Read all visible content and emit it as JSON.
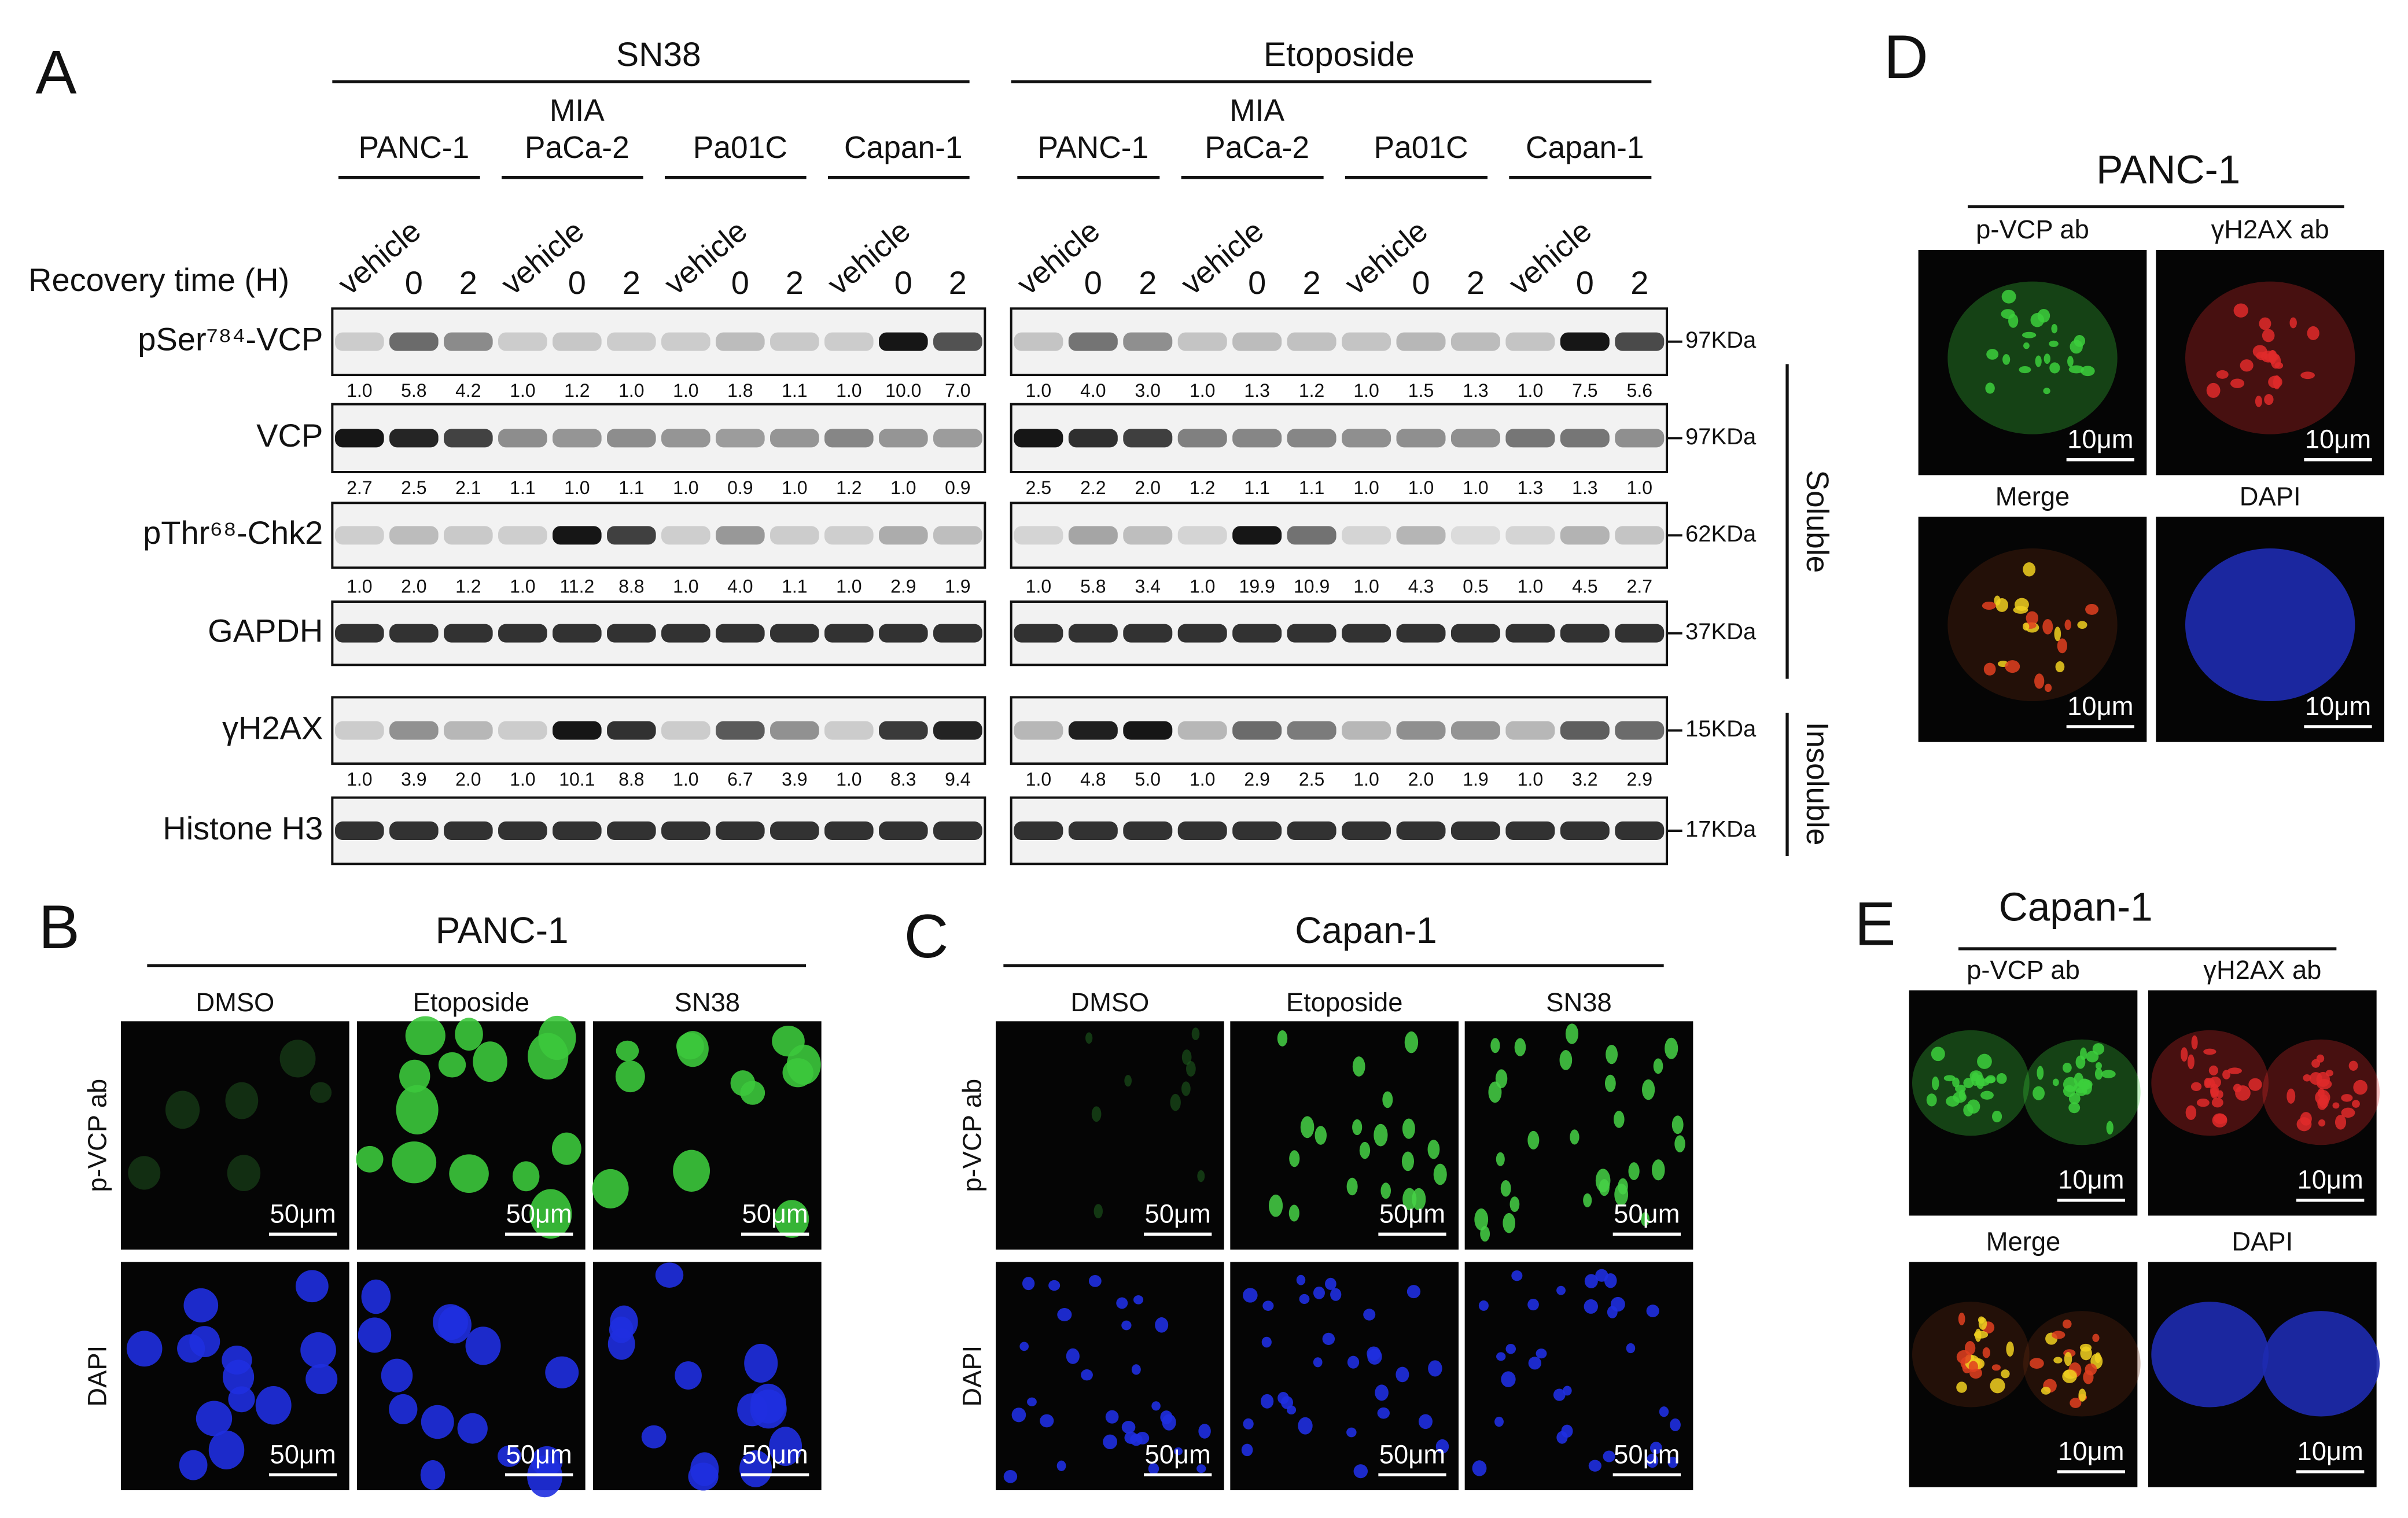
{
  "panel_a": {
    "label": "A",
    "groups": [
      {
        "drug": "SN38",
        "cell_lines": [
          [
            "PANC-1"
          ],
          [
            "MIA",
            "PaCa-2"
          ],
          [
            "Pa01C"
          ],
          [
            "Capan-1"
          ]
        ]
      },
      {
        "drug": "Etoposide",
        "cell_lines": [
          [
            "PANC-1"
          ],
          [
            "MIA",
            "PaCa-2"
          ],
          [
            "Pa01C"
          ],
          [
            "Capan-1"
          ]
        ]
      }
    ],
    "recovery_label": "Recovery time (H)",
    "lane_labels": [
      "vehicle",
      "0",
      "2"
    ],
    "rows": [
      {
        "protein": "pSer⁷⁸⁴-VCP",
        "marker": "97KDa",
        "quant": [
          [
            "1.0",
            "5.8",
            "4.2",
            "1.0",
            "1.2",
            "1.0",
            "1.0",
            "1.8",
            "1.1",
            "1.0",
            "10.0",
            "7.0"
          ],
          [
            "1.0",
            "4.0",
            "3.0",
            "1.0",
            "1.3",
            "1.2",
            "1.0",
            "1.5",
            "1.3",
            "1.0",
            "7.5",
            "5.6"
          ]
        ]
      },
      {
        "protein": "VCP",
        "marker": "97KDa",
        "quant": [
          [
            "2.7",
            "2.5",
            "2.1",
            "1.1",
            "1.0",
            "1.1",
            "1.0",
            "0.9",
            "1.0",
            "1.2",
            "1.0",
            "0.9"
          ],
          [
            "2.5",
            "2.2",
            "2.0",
            "1.2",
            "1.1",
            "1.1",
            "1.0",
            "1.0",
            "1.0",
            "1.3",
            "1.3",
            "1.0"
          ]
        ]
      },
      {
        "protein": "pThr⁶⁸-Chk2",
        "marker": "62KDa",
        "quant": [
          [
            "1.0",
            "2.0",
            "1.2",
            "1.0",
            "11.2",
            "8.8",
            "1.0",
            "4.0",
            "1.1",
            "1.0",
            "2.9",
            "1.9"
          ],
          [
            "1.0",
            "5.8",
            "3.4",
            "1.0",
            "19.9",
            "10.9",
            "1.0",
            "4.3",
            "0.5",
            "1.0",
            "4.5",
            "2.7"
          ]
        ]
      },
      {
        "protein": "GAPDH",
        "marker": "37KDa"
      },
      {
        "protein": "γH2AX",
        "marker": "15KDa",
        "quant": [
          [
            "1.0",
            "3.9",
            "2.0",
            "1.0",
            "10.1",
            "8.8",
            "1.0",
            "6.7",
            "3.9",
            "1.0",
            "8.3",
            "9.4"
          ],
          [
            "1.0",
            "4.8",
            "5.0",
            "1.0",
            "2.9",
            "2.5",
            "1.0",
            "2.0",
            "1.9",
            "1.0",
            "3.2",
            "2.9"
          ]
        ]
      },
      {
        "protein": "Histone H3",
        "marker": "17KDa"
      }
    ],
    "fractions": [
      "Soluble",
      "Insoluble"
    ]
  },
  "panel_b": {
    "label": "B",
    "title": "PANC-1",
    "columns": [
      "DMSO",
      "Etoposide",
      "SN38"
    ],
    "rows": [
      "p-VCP ab",
      "DAPI"
    ],
    "scale_bar": "50μm"
  },
  "panel_c": {
    "label": "C",
    "title": "Capan-1",
    "columns": [
      "DMSO",
      "Etoposide",
      "SN38"
    ],
    "rows": [
      "p-VCP ab",
      "DAPI"
    ],
    "scale_bar": "50μm"
  },
  "panel_d": {
    "label": "D",
    "title": "PANC-1",
    "grid": [
      [
        "p-VCP ab",
        "γH2AX ab"
      ],
      [
        "Merge",
        "DAPI"
      ]
    ],
    "scale_bar": "10μm"
  },
  "panel_e": {
    "label": "E",
    "title": "Capan-1",
    "grid": [
      [
        "p-VCP ab",
        "γH2AX ab"
      ],
      [
        "Merge",
        "DAPI"
      ]
    ],
    "scale_bar": "10μm"
  }
}
